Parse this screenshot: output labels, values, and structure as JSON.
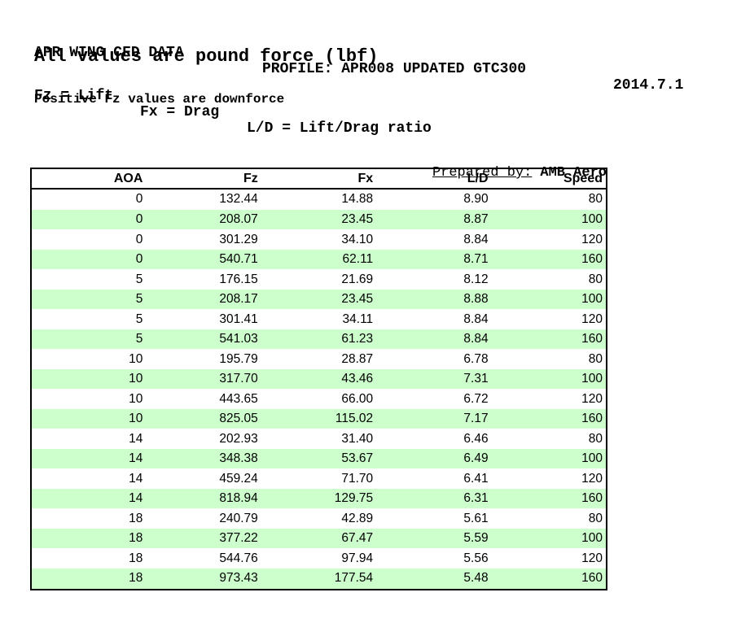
{
  "header": {
    "title": "APR WING CFD DATA",
    "profile": "PROFILE: APR008 UPDATED GTC300",
    "date": "2014.7.1",
    "units_note": "All values are pound force (lbf)",
    "legend_fz": "Fz = Lift",
    "legend_fx": "Fx = Drag",
    "legend_ld": "L/D = Lift/Drag ratio",
    "downforce_note": "Positive Fz values are downforce"
  },
  "prepared_by": {
    "label": "Prepared by:",
    "value": "AMB Aero"
  },
  "table": {
    "columns": [
      "AOA",
      "Fz",
      "Fx",
      "L/D",
      "Speed"
    ],
    "rows": [
      [
        "0",
        "132.44",
        "14.88",
        "8.90",
        "80"
      ],
      [
        "0",
        "208.07",
        "23.45",
        "8.87",
        "100"
      ],
      [
        "0",
        "301.29",
        "34.10",
        "8.84",
        "120"
      ],
      [
        "0",
        "540.71",
        "62.11",
        "8.71",
        "160"
      ],
      [
        "5",
        "176.15",
        "21.69",
        "8.12",
        "80"
      ],
      [
        "5",
        "208.17",
        "23.45",
        "8.88",
        "100"
      ],
      [
        "5",
        "301.41",
        "34.11",
        "8.84",
        "120"
      ],
      [
        "5",
        "541.03",
        "61.23",
        "8.84",
        "160"
      ],
      [
        "10",
        "195.79",
        "28.87",
        "6.78",
        "80"
      ],
      [
        "10",
        "317.70",
        "43.46",
        "7.31",
        "100"
      ],
      [
        "10",
        "443.65",
        "66.00",
        "6.72",
        "120"
      ],
      [
        "10",
        "825.05",
        "115.02",
        "7.17",
        "160"
      ],
      [
        "14",
        "202.93",
        "31.40",
        "6.46",
        "80"
      ],
      [
        "14",
        "348.38",
        "53.67",
        "6.49",
        "100"
      ],
      [
        "14",
        "459.24",
        "71.70",
        "6.41",
        "120"
      ],
      [
        "14",
        "818.94",
        "129.75",
        "6.31",
        "160"
      ],
      [
        "18",
        "240.79",
        "42.89",
        "5.61",
        "80"
      ],
      [
        "18",
        "377.22",
        "67.47",
        "5.59",
        "100"
      ],
      [
        "18",
        "544.76",
        "97.94",
        "5.56",
        "120"
      ],
      [
        "18",
        "973.43",
        "177.54",
        "5.48",
        "160"
      ]
    ]
  },
  "colors": {
    "row_highlight": "#ccffcc",
    "border": "#000000",
    "background": "#ffffff",
    "text": "#000000"
  }
}
